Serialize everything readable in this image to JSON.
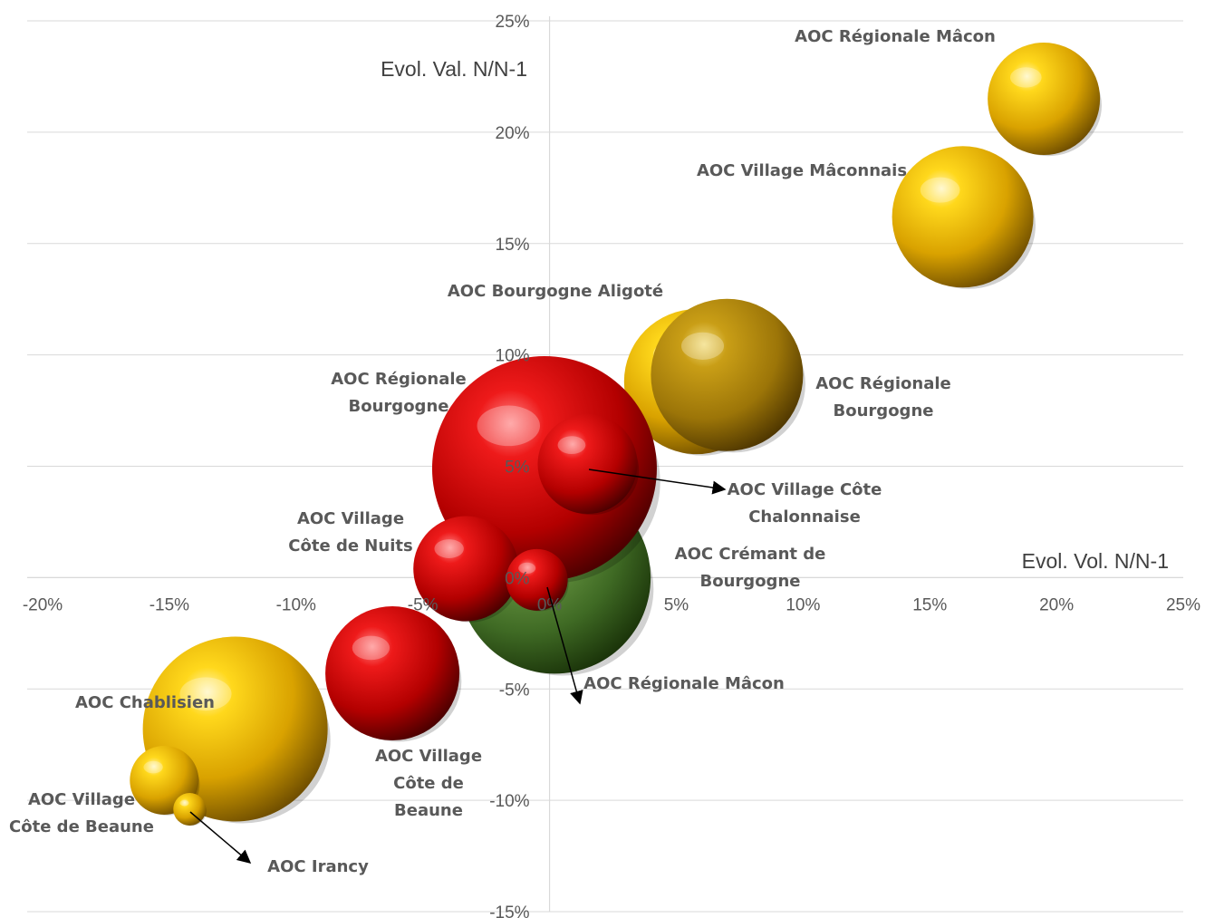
{
  "chart_data": {
    "type": "bubble",
    "xlabel": "Evol. Vol. N/N-1",
    "ylabel": "Evol. Val. N/N-1",
    "xlim": [
      -0.2,
      0.25
    ],
    "ylim": [
      -0.15,
      0.25
    ],
    "x_ticks": [
      "-20%",
      "-15%",
      "-10%",
      "-5%",
      "0%",
      "5%",
      "10%",
      "15%",
      "20%",
      "25%"
    ],
    "y_ticks": [
      "25%",
      "20%",
      "15%",
      "10%",
      "5%",
      "0%",
      "-5%",
      "-10%",
      "-15%"
    ],
    "grid": "horizontal",
    "colors": {
      "gold": "#e8b800",
      "dark_gold": "#b08c10",
      "red": "#c00000",
      "green": "#4e7a2e"
    },
    "bubbles": [
      {
        "label": [
          "AOC Régionale Mâcon"
        ],
        "x": 0.195,
        "y": 0.215,
        "size": 62,
        "color": "gold"
      },
      {
        "label": [
          "AOC Village Mâconnais"
        ],
        "x": 0.163,
        "y": 0.162,
        "size": 78,
        "color": "gold"
      },
      {
        "label": [
          "AOC Bourgogne Aligoté"
        ],
        "x": 0.058,
        "y": 0.088,
        "size": 80,
        "color": "gold"
      },
      {
        "label": [
          "AOC Régionale",
          "Bourgogne"
        ],
        "x": 0.07,
        "y": 0.091,
        "size": 84,
        "color": "dark_gold"
      },
      {
        "label": [
          "AOC Crémant de",
          "Bourgogne"
        ],
        "x": 0.002,
        "y": 0.0,
        "size": 106,
        "color": "green"
      },
      {
        "label": [
          "AOC Régionale",
          "Bourgogne"
        ],
        "x": -0.002,
        "y": 0.049,
        "size": 124,
        "color": "red"
      },
      {
        "label": [
          "AOC Village Côte",
          "Chalonnaise"
        ],
        "x": 0.015,
        "y": 0.051,
        "size": 55,
        "color": "red"
      },
      {
        "label": [
          "AOC Village",
          "Côte de Nuits"
        ],
        "x": -0.033,
        "y": 0.004,
        "size": 58,
        "color": "red"
      },
      {
        "label": [
          "AOC Régionale Mâcon"
        ],
        "x": -0.005,
        "y": -0.001,
        "size": 34,
        "color": "red"
      },
      {
        "label": [
          "AOC Village",
          "Côte de",
          "Beaune"
        ],
        "x": -0.062,
        "y": -0.043,
        "size": 74,
        "color": "red"
      },
      {
        "label": [
          "AOC Chablisien"
        ],
        "x": -0.124,
        "y": -0.068,
        "size": 102,
        "color": "gold"
      },
      {
        "label": [
          "AOC Village",
          "Côte de Beaune"
        ],
        "x": -0.152,
        "y": -0.091,
        "size": 38,
        "color": "gold"
      },
      {
        "label": [
          "AOC Irancy"
        ],
        "x": -0.142,
        "y": -0.104,
        "size": 18,
        "color": "gold"
      }
    ]
  }
}
